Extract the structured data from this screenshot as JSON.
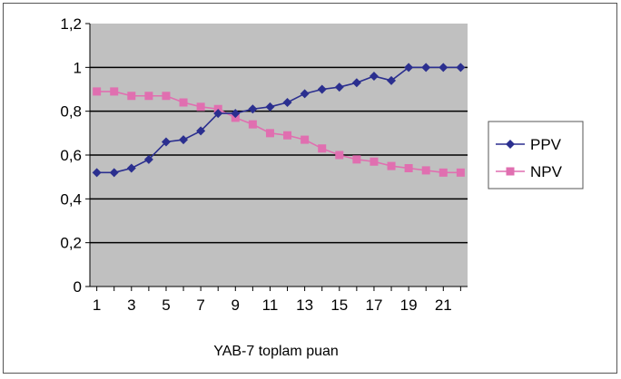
{
  "chart_data": {
    "type": "line",
    "title": "",
    "xlabel": "YAB-7 toplam puan",
    "ylabel": "",
    "x": [
      1,
      2,
      3,
      4,
      5,
      6,
      7,
      8,
      9,
      10,
      11,
      12,
      13,
      14,
      15,
      16,
      17,
      18,
      19,
      20,
      21,
      22
    ],
    "x_tick_labels": [
      "1",
      "3",
      "5",
      "7",
      "9",
      "11",
      "13",
      "15",
      "17",
      "19",
      "21"
    ],
    "x_tick_positions": [
      1,
      3,
      5,
      7,
      9,
      11,
      13,
      15,
      17,
      19,
      21
    ],
    "ylim": [
      0,
      1.2
    ],
    "y_tick_values": [
      0,
      0.2,
      0.4,
      0.6,
      0.8,
      1.0,
      1.2
    ],
    "y_tick_labels": [
      "0",
      "0,2",
      "0,4",
      "0,6",
      "0,8",
      "1",
      "1,2"
    ],
    "grid": true,
    "legend_position": "right",
    "plot_background": "#c0c0c0",
    "series": [
      {
        "name": "PPV",
        "color": "#2b2f8f",
        "marker": "diamond",
        "values": [
          0.52,
          0.52,
          0.54,
          0.58,
          0.66,
          0.67,
          0.71,
          0.79,
          0.79,
          0.81,
          0.82,
          0.84,
          0.88,
          0.9,
          0.91,
          0.93,
          0.96,
          0.94,
          1.0,
          1.0,
          1.0,
          1.0
        ]
      },
      {
        "name": "NPV",
        "color": "#e06fb0",
        "marker": "square",
        "values": [
          0.89,
          0.89,
          0.87,
          0.87,
          0.87,
          0.84,
          0.82,
          0.81,
          0.77,
          0.74,
          0.7,
          0.69,
          0.67,
          0.63,
          0.6,
          0.58,
          0.57,
          0.55,
          0.54,
          0.53,
          0.52,
          0.52
        ]
      }
    ]
  }
}
